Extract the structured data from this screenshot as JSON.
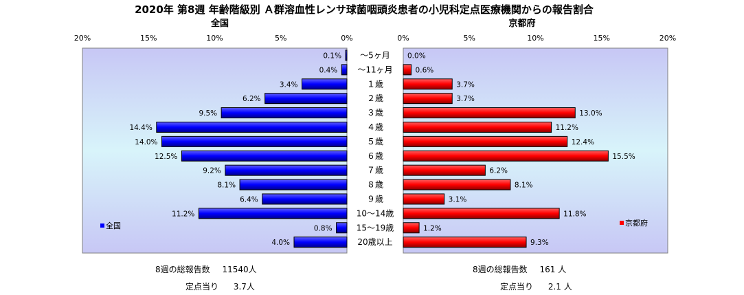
{
  "title": "2020年 第8週 年齢階級別 Ａ群溶血性レンサ球菌咽頭炎患者の小児科定点医療機関からの報告割合",
  "colors": {
    "national": "#0000ff",
    "kyoto": "#ff0000",
    "plot_bg_edge": "#c7c7f5",
    "plot_bg_mid": "#d8f4fa"
  },
  "chart_data": [
    {
      "type": "bar",
      "orientation": "horizontal",
      "direction": "right-to-left",
      "title": "全国",
      "legend": "全国",
      "legend_position": "bottom-left",
      "xlim": [
        0,
        20
      ],
      "x_ticks": [
        "20%",
        "15%",
        "10%",
        "5%",
        "0%"
      ],
      "x_tick_values": [
        20,
        15,
        10,
        5,
        0
      ],
      "categories": [
        "～5ヶ月",
        "～11ヶ月",
        "１歳",
        "２歳",
        "３歳",
        "４歳",
        "５歳",
        "６歳",
        "７歳",
        "８歳",
        "９歳",
        "10～14歳",
        "15～19歳",
        "20歳以上"
      ],
      "values": [
        0.1,
        0.4,
        3.4,
        6.2,
        9.5,
        14.4,
        14.0,
        12.5,
        9.2,
        8.1,
        6.4,
        11.2,
        0.8,
        4.0
      ],
      "labels": [
        "0.1%",
        "0.4%",
        "3.4%",
        "6.2%",
        "9.5%",
        "14.4%",
        "14.0%",
        "12.5%",
        "9.2%",
        "8.1%",
        "6.4%",
        "11.2%",
        "0.8%",
        "4.0%"
      ]
    },
    {
      "type": "bar",
      "orientation": "horizontal",
      "direction": "left-to-right",
      "title": "京都府",
      "legend": "京都府",
      "legend_position": "bottom-right",
      "xlim": [
        0,
        20
      ],
      "x_ticks": [
        "0%",
        "5%",
        "10%",
        "15%",
        "20%"
      ],
      "x_tick_values": [
        0,
        5,
        10,
        15,
        20
      ],
      "categories": [
        "～5ヶ月",
        "～11ヶ月",
        "１歳",
        "２歳",
        "３歳",
        "４歳",
        "５歳",
        "６歳",
        "７歳",
        "８歳",
        "９歳",
        "10～14歳",
        "15～19歳",
        "20歳以上"
      ],
      "values": [
        0.0,
        0.6,
        3.7,
        3.7,
        13.0,
        11.2,
        12.4,
        15.5,
        6.2,
        8.1,
        3.1,
        11.8,
        1.2,
        9.3
      ],
      "labels": [
        "0.0%",
        "0.6%",
        "3.7%",
        "3.7%",
        "13.0%",
        "11.2%",
        "12.4%",
        "15.5%",
        "6.2%",
        "8.1%",
        "3.1%",
        "11.8%",
        "1.2%",
        "9.3%"
      ]
    }
  ],
  "stats": {
    "national": {
      "total_label": "8週の総報告数",
      "total_value": "11540人",
      "per_label": "定点当り",
      "per_value": "3.7人"
    },
    "kyoto": {
      "total_label": "8週の総報告数",
      "total_value": "161 人",
      "per_label": "定点当り",
      "per_value": "2.1 人"
    }
  }
}
